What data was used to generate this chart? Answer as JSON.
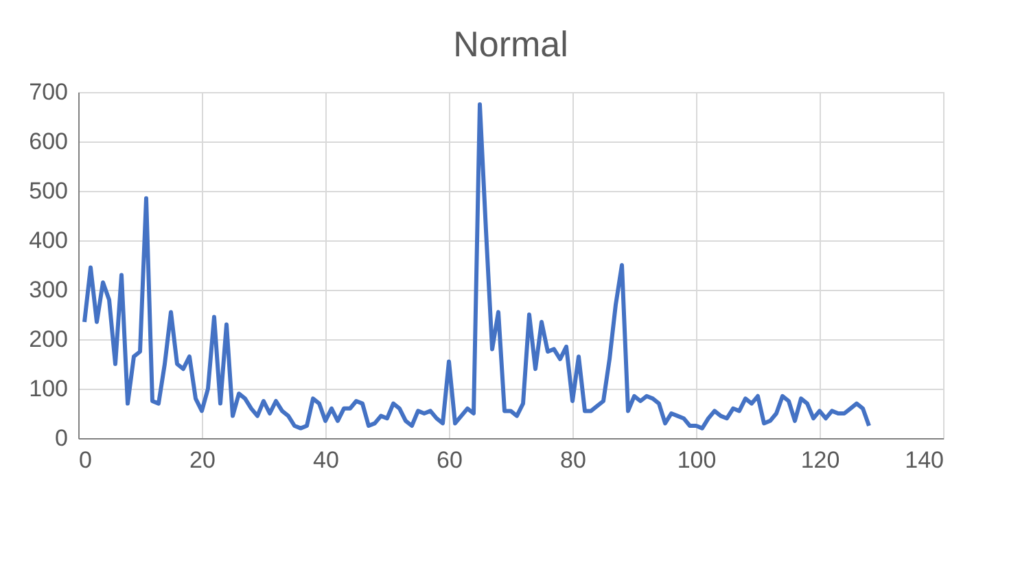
{
  "chart_data": {
    "type": "line",
    "title": "Normal",
    "x": [
      1,
      2,
      3,
      4,
      5,
      6,
      7,
      8,
      9,
      10,
      11,
      12,
      13,
      14,
      15,
      16,
      17,
      18,
      19,
      20,
      21,
      22,
      23,
      24,
      25,
      26,
      27,
      28,
      29,
      30,
      31,
      32,
      33,
      34,
      35,
      36,
      37,
      38,
      39,
      40,
      41,
      42,
      43,
      44,
      45,
      46,
      47,
      48,
      49,
      50,
      51,
      52,
      53,
      54,
      55,
      56,
      57,
      58,
      59,
      60,
      61,
      62,
      63,
      64,
      65,
      66,
      67,
      68,
      69,
      70,
      71,
      72,
      73,
      74,
      75,
      76,
      77,
      78,
      79,
      80,
      81,
      82,
      83,
      84,
      85,
      86,
      87,
      88,
      89,
      90,
      91,
      92,
      93,
      94,
      95,
      96,
      97,
      98,
      99,
      100,
      101,
      102,
      103,
      104,
      105,
      106,
      107,
      108,
      109,
      110,
      111,
      112,
      113,
      114,
      115,
      116,
      117,
      118,
      119,
      120,
      121,
      122,
      123,
      124,
      125,
      126,
      127,
      128
    ],
    "series": [
      {
        "color": "#4472c4",
        "values": [
          235,
          345,
          235,
          315,
          280,
          150,
          330,
          70,
          165,
          175,
          485,
          75,
          70,
          150,
          255,
          150,
          140,
          165,
          80,
          55,
          100,
          245,
          70,
          230,
          45,
          90,
          80,
          60,
          45,
          75,
          50,
          75,
          55,
          45,
          25,
          20,
          25,
          80,
          70,
          35,
          60,
          35,
          60,
          60,
          75,
          70,
          25,
          30,
          45,
          40,
          70,
          60,
          35,
          25,
          55,
          50,
          55,
          40,
          30,
          155,
          30,
          45,
          60,
          50,
          675,
          420,
          180,
          255,
          55,
          55,
          45,
          70,
          250,
          140,
          235,
          175,
          180,
          160,
          185,
          75,
          165,
          55,
          55,
          65,
          75,
          160,
          270,
          350,
          55,
          85,
          75,
          85,
          80,
          70,
          30,
          50,
          45,
          40,
          25,
          25,
          20,
          40,
          55,
          45,
          40,
          60,
          55,
          80,
          70,
          85,
          30,
          35,
          50,
          85,
          75,
          35,
          80,
          70,
          40,
          55,
          40,
          55,
          50,
          50,
          60,
          70,
          60,
          25
        ]
      }
    ],
    "xlim": [
      0,
      140
    ],
    "xticks": [
      0,
      20,
      40,
      60,
      80,
      100,
      120,
      140
    ],
    "ylim": [
      0,
      700
    ],
    "yticks": [
      0,
      100,
      200,
      300,
      400,
      500,
      600,
      700
    ],
    "grid": true,
    "marker": "none",
    "line_style": "solid"
  }
}
